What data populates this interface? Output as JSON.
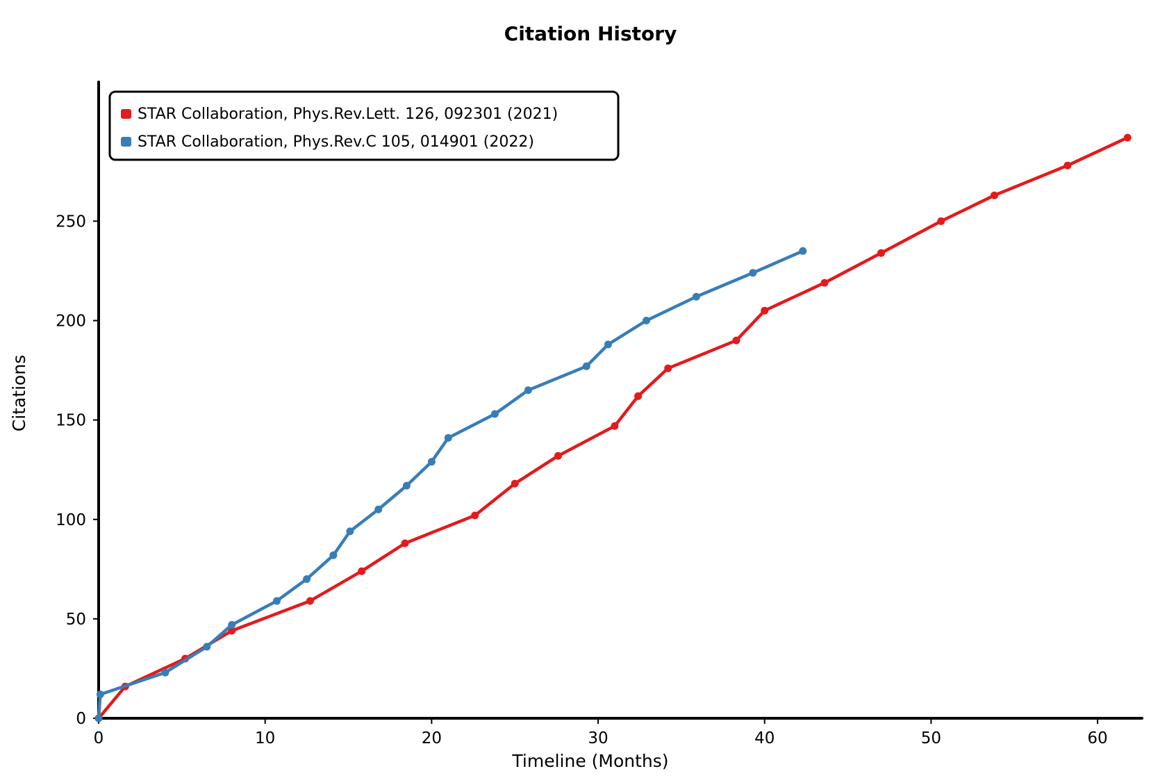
{
  "chart_data": {
    "type": "line",
    "title": "Citation History",
    "xlabel": "Timeline (Months)",
    "ylabel": "Citations",
    "xlim": [
      0,
      62
    ],
    "ylim": [
      0,
      290
    ],
    "xticks": [
      0,
      10,
      20,
      30,
      40,
      50,
      60
    ],
    "yticks": [
      0,
      50,
      100,
      150,
      200,
      250
    ],
    "grid": false,
    "legend_position": "top-left",
    "series": [
      {
        "name": "STAR Collaboration, Phys.Rev.Lett. 126, 092301 (2021)",
        "color": "#e41a1c",
        "x": [
          0,
          1.6,
          5.2,
          8,
          12.7,
          15.8,
          18.4,
          22.6,
          25,
          27.6,
          31,
          32.4,
          34.2,
          38.3,
          40,
          43.6,
          47,
          50.6,
          53.8,
          58.2,
          61.8
        ],
        "y": [
          0,
          16,
          30,
          44,
          59,
          74,
          88,
          102,
          118,
          132,
          147,
          162,
          176,
          190,
          205,
          219,
          234,
          250,
          263,
          278,
          292
        ]
      },
      {
        "name": "STAR Collaboration, Phys.Rev.C 105, 014901 (2022)",
        "color": "#377eb8",
        "x": [
          0,
          0.1,
          4,
          6.5,
          8,
          10.7,
          12.5,
          14.1,
          15.1,
          16.8,
          18.5,
          20,
          21,
          23.8,
          25.8,
          29.3,
          30.6,
          32.9,
          35.9,
          39.3,
          42.3
        ],
        "y": [
          0,
          12,
          23,
          36,
          47,
          59,
          70,
          82,
          94,
          105,
          117,
          129,
          141,
          153,
          165,
          177,
          188,
          200,
          212,
          224,
          235
        ]
      }
    ]
  }
}
